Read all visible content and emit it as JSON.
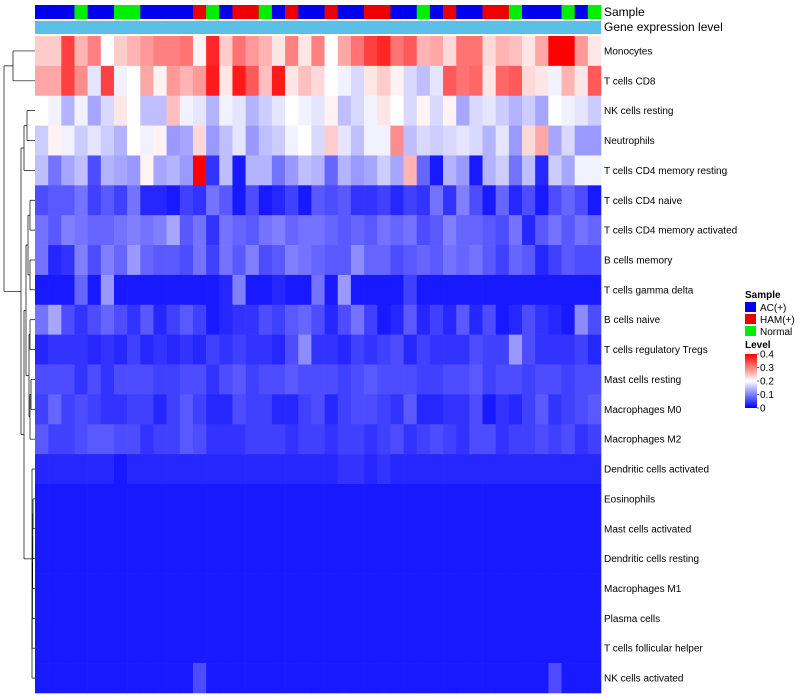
{
  "chart_data": {
    "type": "heatmap",
    "annotation_labels": [
      "Sample",
      "Gene expression level"
    ],
    "rows": [
      "Monocytes",
      "T cells CD8",
      "NK cells resting",
      "Neutrophils",
      "T cells CD4 memory resting",
      "T cells CD4 naive",
      "T cells CD4 memory activated",
      "B cells memory",
      "T cells gamma delta",
      "B cells naive",
      "T cells regulatory  Tregs",
      "Mast cells resting",
      "Macrophages M0",
      "Macrophages M2",
      "Dendritic cells activated",
      "Eosinophils",
      "Mast cells activated",
      "Dendritic cells resting",
      "Macrophages M1",
      "Plasma cells",
      "T cells follicular helper",
      "NK cells activated"
    ],
    "sample_groups": [
      "AC(+)",
      "AC(+)",
      "AC(+)",
      "Normal",
      "AC(+)",
      "AC(+)",
      "Normal",
      "Normal",
      "AC(+)",
      "AC(+)",
      "AC(+)",
      "AC(+)",
      "HAM(+)",
      "Normal",
      "AC(+)",
      "HAM(+)",
      "HAM(+)",
      "Normal",
      "AC(+)",
      "HAM(+)",
      "AC(+)",
      "AC(+)",
      "HAM(+)",
      "AC(+)",
      "AC(+)",
      "HAM(+)",
      "HAM(+)",
      "AC(+)",
      "AC(+)",
      "Normal",
      "AC(+)",
      "HAM(+)",
      "AC(+)",
      "AC(+)",
      "HAM(+)",
      "HAM(+)",
      "Normal",
      "AC(+)",
      "AC(+)",
      "AC(+)",
      "Normal",
      "AC(+)",
      "Normal"
    ],
    "color_scale": {
      "min": 0,
      "max": 0.4,
      "low": "#0000ff",
      "mid": "#ffffff",
      "high": "#ff0000",
      "mid_value": 0.2
    },
    "values": [
      [
        0.24,
        0.24,
        0.35,
        0.26,
        0.3,
        0.2,
        0.24,
        0.26,
        0.28,
        0.3,
        0.3,
        0.31,
        0.21,
        0.37,
        0.24,
        0.31,
        0.28,
        0.26,
        0.22,
        0.3,
        0.22,
        0.3,
        0.2,
        0.27,
        0.31,
        0.35,
        0.37,
        0.31,
        0.33,
        0.26,
        0.27,
        0.23,
        0.31,
        0.31,
        0.23,
        0.26,
        0.25,
        0.22,
        0.27,
        0.41,
        0.41,
        0.28,
        0.22
      ],
      [
        0.27,
        0.27,
        0.35,
        0.29,
        0.18,
        0.35,
        0.19,
        0.2,
        0.27,
        0.21,
        0.28,
        0.26,
        0.28,
        0.38,
        0.22,
        0.38,
        0.33,
        0.25,
        0.38,
        0.22,
        0.25,
        0.23,
        0.2,
        0.19,
        0.17,
        0.22,
        0.24,
        0.21,
        0.17,
        0.15,
        0.18,
        0.33,
        0.31,
        0.32,
        0.22,
        0.32,
        0.33,
        0.23,
        0.22,
        0.19,
        0.26,
        0.22,
        0.33
      ],
      [
        0.2,
        0.19,
        0.14,
        0.19,
        0.13,
        0.17,
        0.22,
        0.2,
        0.15,
        0.15,
        0.25,
        0.19,
        0.18,
        0.14,
        0.19,
        0.18,
        0.14,
        0.16,
        0.18,
        0.2,
        0.19,
        0.18,
        0.21,
        0.15,
        0.17,
        0.19,
        0.22,
        0.2,
        0.17,
        0.21,
        0.17,
        0.21,
        0.13,
        0.17,
        0.18,
        0.16,
        0.14,
        0.16,
        0.13,
        0.2,
        0.19,
        0.18,
        0.16
      ],
      [
        0.16,
        0.21,
        0.19,
        0.16,
        0.18,
        0.16,
        0.14,
        0.2,
        0.19,
        0.21,
        0.12,
        0.13,
        0.23,
        0.12,
        0.15,
        0.18,
        0.12,
        0.15,
        0.16,
        0.19,
        0.2,
        0.17,
        0.24,
        0.18,
        0.15,
        0.19,
        0.19,
        0.29,
        0.15,
        0.17,
        0.16,
        0.17,
        0.18,
        0.17,
        0.14,
        0.18,
        0.12,
        0.23,
        0.27,
        0.13,
        0.17,
        0.12,
        0.12
      ],
      [
        0.15,
        0.09,
        0.13,
        0.15,
        0.06,
        0.14,
        0.13,
        0.12,
        0.21,
        0.13,
        0.14,
        0.12,
        0.4,
        0.04,
        0.15,
        0.02,
        0.14,
        0.14,
        0.09,
        0.12,
        0.15,
        0.14,
        0.08,
        0.14,
        0.12,
        0.13,
        0.16,
        0.13,
        0.26,
        0.08,
        0.02,
        0.14,
        0.12,
        0.02,
        0.14,
        0.16,
        0.09,
        0.15,
        0.03,
        0.16,
        0.13,
        0.19,
        0.19
      ],
      [
        0.06,
        0.07,
        0.07,
        0.09,
        0.05,
        0.07,
        0.05,
        0.09,
        0.03,
        0.03,
        0.02,
        0.05,
        0.04,
        0.09,
        0.07,
        0.02,
        0.06,
        0.02,
        0.03,
        0.05,
        0.02,
        0.07,
        0.06,
        0.07,
        0.04,
        0.04,
        0.05,
        0.03,
        0.05,
        0.04,
        0.09,
        0.04,
        0.1,
        0.06,
        0.02,
        0.08,
        0.03,
        0.06,
        0.02,
        0.06,
        0.08,
        0.06,
        0.02
      ],
      [
        0.09,
        0.07,
        0.1,
        0.09,
        0.08,
        0.08,
        0.09,
        0.1,
        0.09,
        0.1,
        0.13,
        0.07,
        0.09,
        0.04,
        0.09,
        0.08,
        0.07,
        0.09,
        0.1,
        0.08,
        0.09,
        0.09,
        0.08,
        0.07,
        0.08,
        0.07,
        0.09,
        0.08,
        0.09,
        0.06,
        0.07,
        0.1,
        0.08,
        0.08,
        0.07,
        0.06,
        0.09,
        0.03,
        0.07,
        0.09,
        0.07,
        0.09,
        0.08
      ],
      [
        0.09,
        0.03,
        0.04,
        0.1,
        0.06,
        0.1,
        0.08,
        0.12,
        0.08,
        0.07,
        0.07,
        0.06,
        0.09,
        0.05,
        0.09,
        0.07,
        0.1,
        0.06,
        0.07,
        0.1,
        0.09,
        0.08,
        0.07,
        0.07,
        0.11,
        0.08,
        0.08,
        0.06,
        0.07,
        0.08,
        0.07,
        0.09,
        0.08,
        0.09,
        0.07,
        0.05,
        0.08,
        0.07,
        0.03,
        0.05,
        0.07,
        0.06,
        0.06
      ],
      [
        0.02,
        0.02,
        0.02,
        0.08,
        0.02,
        0.12,
        0.02,
        0.02,
        0.02,
        0.02,
        0.02,
        0.02,
        0.02,
        0.02,
        0.03,
        0.1,
        0.02,
        0.02,
        0.03,
        0.02,
        0.02,
        0.09,
        0.02,
        0.12,
        0.02,
        0.02,
        0.02,
        0.02,
        0.05,
        0.02,
        0.02,
        0.02,
        0.02,
        0.02,
        0.02,
        0.02,
        0.02,
        0.02,
        0.02,
        0.02,
        0.02,
        0.02,
        0.02
      ],
      [
        0.09,
        0.13,
        0.06,
        0.04,
        0.06,
        0.08,
        0.06,
        0.04,
        0.07,
        0.03,
        0.05,
        0.07,
        0.05,
        0.02,
        0.03,
        0.04,
        0.04,
        0.06,
        0.05,
        0.07,
        0.08,
        0.06,
        0.03,
        0.06,
        0.09,
        0.05,
        0.02,
        0.03,
        0.07,
        0.03,
        0.05,
        0.03,
        0.07,
        0.03,
        0.06,
        0.02,
        0.03,
        0.06,
        0.04,
        0.03,
        0.02,
        0.11,
        0.06
      ],
      [
        0.03,
        0.04,
        0.04,
        0.04,
        0.03,
        0.04,
        0.03,
        0.05,
        0.03,
        0.04,
        0.03,
        0.04,
        0.03,
        0.05,
        0.04,
        0.05,
        0.04,
        0.04,
        0.03,
        0.06,
        0.11,
        0.04,
        0.04,
        0.03,
        0.05,
        0.04,
        0.05,
        0.06,
        0.03,
        0.05,
        0.04,
        0.04,
        0.04,
        0.06,
        0.05,
        0.05,
        0.12,
        0.06,
        0.04,
        0.04,
        0.04,
        0.05,
        0.03
      ],
      [
        0.06,
        0.06,
        0.06,
        0.04,
        0.06,
        0.04,
        0.06,
        0.06,
        0.06,
        0.05,
        0.05,
        0.06,
        0.06,
        0.04,
        0.06,
        0.07,
        0.05,
        0.06,
        0.06,
        0.07,
        0.06,
        0.06,
        0.06,
        0.05,
        0.06,
        0.07,
        0.06,
        0.06,
        0.06,
        0.05,
        0.05,
        0.06,
        0.06,
        0.07,
        0.05,
        0.06,
        0.06,
        0.05,
        0.06,
        0.06,
        0.05,
        0.06,
        0.06
      ],
      [
        0.05,
        0.08,
        0.05,
        0.06,
        0.05,
        0.04,
        0.04,
        0.05,
        0.05,
        0.03,
        0.05,
        0.07,
        0.05,
        0.03,
        0.03,
        0.06,
        0.05,
        0.05,
        0.03,
        0.03,
        0.05,
        0.06,
        0.03,
        0.05,
        0.06,
        0.06,
        0.05,
        0.04,
        0.07,
        0.03,
        0.03,
        0.04,
        0.04,
        0.06,
        0.02,
        0.04,
        0.03,
        0.05,
        0.07,
        0.04,
        0.05,
        0.06,
        0.07
      ],
      [
        0.07,
        0.05,
        0.05,
        0.06,
        0.07,
        0.07,
        0.06,
        0.06,
        0.04,
        0.05,
        0.05,
        0.07,
        0.06,
        0.04,
        0.04,
        0.04,
        0.05,
        0.05,
        0.05,
        0.04,
        0.05,
        0.05,
        0.04,
        0.05,
        0.05,
        0.04,
        0.05,
        0.06,
        0.04,
        0.05,
        0.06,
        0.05,
        0.04,
        0.06,
        0.06,
        0.04,
        0.05,
        0.05,
        0.06,
        0.05,
        0.06,
        0.04,
        0.05
      ],
      [
        0.03,
        0.03,
        0.03,
        0.03,
        0.03,
        0.03,
        0.02,
        0.03,
        0.03,
        0.03,
        0.03,
        0.03,
        0.03,
        0.03,
        0.03,
        0.03,
        0.03,
        0.03,
        0.03,
        0.03,
        0.03,
        0.03,
        0.03,
        0.04,
        0.04,
        0.03,
        0.04,
        0.03,
        0.03,
        0.03,
        0.03,
        0.03,
        0.03,
        0.03,
        0.03,
        0.03,
        0.03,
        0.03,
        0.03,
        0.03,
        0.03,
        0.03,
        0.03
      ],
      [
        0.02,
        0.02,
        0.02,
        0.02,
        0.02,
        0.02,
        0.02,
        0.02,
        0.02,
        0.02,
        0.02,
        0.02,
        0.02,
        0.02,
        0.02,
        0.02,
        0.02,
        0.02,
        0.02,
        0.02,
        0.02,
        0.02,
        0.02,
        0.02,
        0.02,
        0.02,
        0.02,
        0.02,
        0.02,
        0.02,
        0.02,
        0.02,
        0.02,
        0.02,
        0.02,
        0.02,
        0.02,
        0.02,
        0.02,
        0.02,
        0.02,
        0.02,
        0.02
      ],
      [
        0.02,
        0.02,
        0.02,
        0.02,
        0.02,
        0.02,
        0.02,
        0.02,
        0.02,
        0.02,
        0.02,
        0.02,
        0.02,
        0.02,
        0.02,
        0.02,
        0.02,
        0.02,
        0.02,
        0.02,
        0.02,
        0.02,
        0.02,
        0.02,
        0.02,
        0.02,
        0.02,
        0.02,
        0.02,
        0.02,
        0.02,
        0.02,
        0.02,
        0.02,
        0.02,
        0.02,
        0.02,
        0.02,
        0.02,
        0.02,
        0.02,
        0.02,
        0.02
      ],
      [
        0.02,
        0.02,
        0.02,
        0.02,
        0.02,
        0.02,
        0.02,
        0.02,
        0.02,
        0.02,
        0.02,
        0.02,
        0.02,
        0.02,
        0.02,
        0.02,
        0.02,
        0.02,
        0.02,
        0.02,
        0.02,
        0.02,
        0.02,
        0.02,
        0.02,
        0.02,
        0.02,
        0.02,
        0.02,
        0.02,
        0.02,
        0.02,
        0.02,
        0.02,
        0.02,
        0.02,
        0.02,
        0.02,
        0.02,
        0.02,
        0.02,
        0.02,
        0.02
      ],
      [
        0.02,
        0.02,
        0.02,
        0.02,
        0.02,
        0.02,
        0.02,
        0.02,
        0.02,
        0.02,
        0.02,
        0.02,
        0.02,
        0.02,
        0.02,
        0.02,
        0.02,
        0.02,
        0.02,
        0.02,
        0.02,
        0.02,
        0.02,
        0.02,
        0.02,
        0.02,
        0.02,
        0.02,
        0.02,
        0.02,
        0.02,
        0.02,
        0.02,
        0.02,
        0.02,
        0.02,
        0.02,
        0.02,
        0.02,
        0.02,
        0.02,
        0.02,
        0.02
      ],
      [
        0.02,
        0.02,
        0.02,
        0.02,
        0.02,
        0.02,
        0.02,
        0.02,
        0.02,
        0.02,
        0.02,
        0.02,
        0.02,
        0.02,
        0.02,
        0.02,
        0.02,
        0.02,
        0.02,
        0.02,
        0.02,
        0.02,
        0.02,
        0.02,
        0.02,
        0.02,
        0.02,
        0.02,
        0.02,
        0.02,
        0.02,
        0.02,
        0.02,
        0.02,
        0.02,
        0.02,
        0.02,
        0.02,
        0.02,
        0.02,
        0.02,
        0.02,
        0.02
      ],
      [
        0.02,
        0.02,
        0.02,
        0.02,
        0.02,
        0.02,
        0.02,
        0.02,
        0.02,
        0.02,
        0.02,
        0.02,
        0.02,
        0.02,
        0.02,
        0.02,
        0.02,
        0.02,
        0.02,
        0.02,
        0.02,
        0.02,
        0.02,
        0.02,
        0.02,
        0.02,
        0.02,
        0.02,
        0.02,
        0.02,
        0.02,
        0.02,
        0.02,
        0.02,
        0.02,
        0.02,
        0.02,
        0.02,
        0.02,
        0.02,
        0.02,
        0.02,
        0.02
      ],
      [
        0.02,
        0.02,
        0.02,
        0.02,
        0.02,
        0.02,
        0.02,
        0.02,
        0.02,
        0.02,
        0.02,
        0.02,
        0.06,
        0.02,
        0.02,
        0.02,
        0.02,
        0.02,
        0.02,
        0.02,
        0.02,
        0.02,
        0.02,
        0.02,
        0.02,
        0.02,
        0.02,
        0.02,
        0.02,
        0.02,
        0.02,
        0.02,
        0.02,
        0.02,
        0.02,
        0.02,
        0.02,
        0.02,
        0.02,
        0.06,
        0.02,
        0.02,
        0.02
      ]
    ],
    "legend": {
      "sample_title": "Sample",
      "sample_items": [
        {
          "label": "AC(+)",
          "color": "#0000ee"
        },
        {
          "label": "HAM(+)",
          "color": "#ee0000"
        },
        {
          "label": "Normal",
          "color": "#00ee00"
        }
      ],
      "level_title": "Level",
      "level_ticks": [
        "0.4",
        "0.3",
        "0.2",
        "0.1",
        "0"
      ]
    },
    "expression_bar_color": "#5bc0e8",
    "xlabel": "",
    "ylabel": ""
  }
}
